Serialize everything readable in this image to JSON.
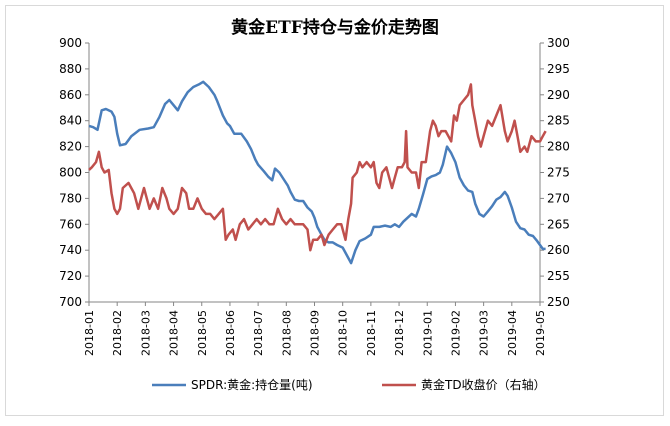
{
  "chart_data": {
    "type": "line",
    "title": "黄金ETF持仓与金价走势图",
    "categories": [
      "2018-01",
      "2018-02",
      "2018-03",
      "2018-04",
      "2018-05",
      "2018-06",
      "2018-07",
      "2018-08",
      "2018-09",
      "2018-10",
      "2018-11",
      "2018-12",
      "2019-01",
      "2019-02",
      "2019-03",
      "2019-04",
      "2019-05"
    ],
    "y_left": {
      "min": 700,
      "max": 900,
      "step": 20,
      "ticks": [
        "900",
        "880",
        "860",
        "840",
        "820",
        "800",
        "780",
        "760",
        "740",
        "720",
        "700"
      ]
    },
    "y_right": {
      "min": 250,
      "max": 300,
      "step": 5,
      "ticks": [
        "300",
        "295",
        "290",
        "285",
        "280",
        "275",
        "270",
        "265",
        "260",
        "255",
        "250"
      ]
    },
    "grid": false,
    "legend_position": "bottom",
    "series": [
      {
        "name": "SPDR:黄金:持仓量(吨)",
        "axis": "left",
        "color": "#4A7EBB",
        "points": [
          [
            0,
            836
          ],
          [
            0.15,
            835
          ],
          [
            0.3,
            833
          ],
          [
            0.45,
            848
          ],
          [
            0.6,
            849
          ],
          [
            0.8,
            847
          ],
          [
            0.9,
            843
          ],
          [
            1.0,
            830
          ],
          [
            1.1,
            821
          ],
          [
            1.3,
            822
          ],
          [
            1.5,
            828
          ],
          [
            1.8,
            833
          ],
          [
            2.1,
            834
          ],
          [
            2.3,
            835
          ],
          [
            2.5,
            843
          ],
          [
            2.7,
            853
          ],
          [
            2.85,
            856
          ],
          [
            3.0,
            852
          ],
          [
            3.15,
            848
          ],
          [
            3.3,
            855
          ],
          [
            3.5,
            862
          ],
          [
            3.7,
            866
          ],
          [
            3.9,
            868
          ],
          [
            4.05,
            870
          ],
          [
            4.25,
            866
          ],
          [
            4.45,
            860
          ],
          [
            4.55,
            855
          ],
          [
            4.75,
            844
          ],
          [
            4.9,
            838
          ],
          [
            5.0,
            836
          ],
          [
            5.15,
            830
          ],
          [
            5.4,
            830
          ],
          [
            5.6,
            824
          ],
          [
            5.75,
            818
          ],
          [
            5.9,
            810
          ],
          [
            6.0,
            806
          ],
          [
            6.2,
            801
          ],
          [
            6.35,
            797
          ],
          [
            6.5,
            794
          ],
          [
            6.6,
            803
          ],
          [
            6.75,
            800
          ],
          [
            6.9,
            795
          ],
          [
            7.05,
            790
          ],
          [
            7.15,
            785
          ],
          [
            7.3,
            779
          ],
          [
            7.45,
            778
          ],
          [
            7.6,
            778
          ],
          [
            7.75,
            773
          ],
          [
            7.9,
            770
          ],
          [
            8.0,
            765
          ],
          [
            8.1,
            758
          ],
          [
            8.25,
            752
          ],
          [
            8.35,
            748
          ],
          [
            8.5,
            746
          ],
          [
            8.65,
            746
          ],
          [
            8.8,
            744
          ],
          [
            9.0,
            742
          ],
          [
            9.15,
            736
          ],
          [
            9.3,
            730
          ],
          [
            9.45,
            740
          ],
          [
            9.6,
            747
          ],
          [
            9.8,
            749
          ],
          [
            10.0,
            752
          ],
          [
            10.1,
            758
          ],
          [
            10.3,
            758
          ],
          [
            10.5,
            759
          ],
          [
            10.7,
            758
          ],
          [
            10.85,
            760
          ],
          [
            11.0,
            758
          ],
          [
            11.15,
            762
          ],
          [
            11.3,
            765
          ],
          [
            11.45,
            768
          ],
          [
            11.6,
            766
          ],
          [
            11.7,
            772
          ],
          [
            11.85,
            783
          ],
          [
            12.0,
            795
          ],
          [
            12.15,
            797
          ],
          [
            12.3,
            798
          ],
          [
            12.45,
            800
          ],
          [
            12.55,
            806
          ],
          [
            12.7,
            820
          ],
          [
            12.85,
            815
          ],
          [
            13.0,
            808
          ],
          [
            13.15,
            796
          ],
          [
            13.3,
            790
          ],
          [
            13.45,
            786
          ],
          [
            13.6,
            785
          ],
          [
            13.7,
            776
          ],
          [
            13.85,
            768
          ],
          [
            14.0,
            766
          ],
          [
            14.15,
            770
          ],
          [
            14.3,
            774
          ],
          [
            14.45,
            779
          ],
          [
            14.6,
            781
          ],
          [
            14.75,
            785
          ],
          [
            14.85,
            782
          ],
          [
            15.0,
            773
          ],
          [
            15.15,
            762
          ],
          [
            15.3,
            757
          ],
          [
            15.45,
            756
          ],
          [
            15.6,
            752
          ],
          [
            15.75,
            751
          ],
          [
            15.9,
            747
          ],
          [
            16.0,
            744
          ],
          [
            16.1,
            741
          ],
          [
            16.2,
            741
          ]
        ]
      },
      {
        "name": "黄金TD收盘价（右轴）",
        "axis": "right",
        "color": "#C0504D",
        "points": [
          [
            0,
            275.5
          ],
          [
            0.1,
            276
          ],
          [
            0.25,
            277
          ],
          [
            0.35,
            279
          ],
          [
            0.45,
            276
          ],
          [
            0.55,
            275
          ],
          [
            0.7,
            275.5
          ],
          [
            0.8,
            271
          ],
          [
            0.9,
            268
          ],
          [
            1.0,
            267
          ],
          [
            1.1,
            268
          ],
          [
            1.2,
            272
          ],
          [
            1.4,
            273
          ],
          [
            1.6,
            271
          ],
          [
            1.75,
            268
          ],
          [
            1.85,
            270
          ],
          [
            1.95,
            272
          ],
          [
            2.05,
            270
          ],
          [
            2.15,
            268
          ],
          [
            2.3,
            270
          ],
          [
            2.45,
            268
          ],
          [
            2.6,
            272
          ],
          [
            2.75,
            270
          ],
          [
            2.85,
            268
          ],
          [
            3.0,
            267
          ],
          [
            3.15,
            268
          ],
          [
            3.3,
            272
          ],
          [
            3.45,
            271
          ],
          [
            3.55,
            268
          ],
          [
            3.7,
            268
          ],
          [
            3.85,
            270
          ],
          [
            4.0,
            268
          ],
          [
            4.15,
            267
          ],
          [
            4.3,
            267
          ],
          [
            4.45,
            266
          ],
          [
            4.6,
            267
          ],
          [
            4.75,
            268
          ],
          [
            4.85,
            262
          ],
          [
            4.95,
            263
          ],
          [
            5.1,
            264
          ],
          [
            5.2,
            262
          ],
          [
            5.35,
            265
          ],
          [
            5.5,
            266
          ],
          [
            5.65,
            264
          ],
          [
            5.8,
            265
          ],
          [
            5.95,
            266
          ],
          [
            6.1,
            265
          ],
          [
            6.25,
            266
          ],
          [
            6.4,
            265
          ],
          [
            6.55,
            265
          ],
          [
            6.7,
            268
          ],
          [
            6.85,
            266
          ],
          [
            7.0,
            265
          ],
          [
            7.15,
            266
          ],
          [
            7.3,
            265
          ],
          [
            7.45,
            265
          ],
          [
            7.6,
            265
          ],
          [
            7.75,
            264
          ],
          [
            7.85,
            260
          ],
          [
            7.95,
            262
          ],
          [
            8.1,
            262
          ],
          [
            8.25,
            263
          ],
          [
            8.35,
            261
          ],
          [
            8.5,
            263
          ],
          [
            8.65,
            264
          ],
          [
            8.8,
            265
          ],
          [
            8.95,
            265
          ],
          [
            9.1,
            262
          ],
          [
            9.2,
            266
          ],
          [
            9.3,
            269
          ],
          [
            9.35,
            274
          ],
          [
            9.5,
            275
          ],
          [
            9.6,
            277
          ],
          [
            9.7,
            276
          ],
          [
            9.85,
            277
          ],
          [
            10.0,
            276
          ],
          [
            10.1,
            277
          ],
          [
            10.2,
            273
          ],
          [
            10.3,
            272
          ],
          [
            10.4,
            275
          ],
          [
            10.55,
            276
          ],
          [
            10.65,
            274
          ],
          [
            10.75,
            272
          ],
          [
            10.85,
            274
          ],
          [
            10.95,
            276
          ],
          [
            11.1,
            276
          ],
          [
            11.2,
            277
          ],
          [
            11.25,
            283
          ],
          [
            11.3,
            276
          ],
          [
            11.45,
            275
          ],
          [
            11.6,
            275
          ],
          [
            11.7,
            272
          ],
          [
            11.8,
            277
          ],
          [
            11.95,
            277
          ],
          [
            12.1,
            283
          ],
          [
            12.2,
            285
          ],
          [
            12.3,
            284
          ],
          [
            12.4,
            282
          ],
          [
            12.5,
            283
          ],
          [
            12.65,
            283
          ],
          [
            12.75,
            282
          ],
          [
            12.85,
            281
          ],
          [
            12.95,
            286
          ],
          [
            13.05,
            285
          ],
          [
            13.15,
            288
          ],
          [
            13.3,
            289
          ],
          [
            13.45,
            290
          ],
          [
            13.55,
            292
          ],
          [
            13.6,
            288
          ],
          [
            13.7,
            285
          ],
          [
            13.8,
            282
          ],
          [
            13.9,
            280
          ],
          [
            14.0,
            282
          ],
          [
            14.15,
            285
          ],
          [
            14.3,
            284
          ],
          [
            14.45,
            286
          ],
          [
            14.6,
            288
          ],
          [
            14.75,
            283
          ],
          [
            14.85,
            281
          ],
          [
            15.0,
            283
          ],
          [
            15.1,
            285
          ],
          [
            15.2,
            282
          ],
          [
            15.3,
            279
          ],
          [
            15.45,
            280
          ],
          [
            15.55,
            279
          ],
          [
            15.7,
            282
          ],
          [
            15.85,
            281
          ],
          [
            16.0,
            281
          ],
          [
            16.1,
            282
          ],
          [
            16.2,
            283
          ]
        ]
      }
    ]
  }
}
